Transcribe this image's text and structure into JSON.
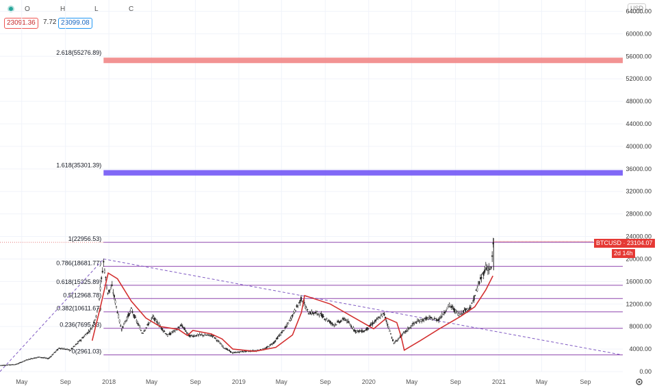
{
  "legend": {
    "o_label": "O",
    "h_label": "H",
    "l_label": "L",
    "c_label": "C",
    "price_a": "23091.36",
    "change": "7.72",
    "price_b": "23099.08"
  },
  "currency": "USD",
  "price_badge": {
    "text": "BTCUSD · 23104.07",
    "sub": "2d 14h",
    "color": "#e53935"
  },
  "chart_data": {
    "type": "candlestick",
    "ylim": [
      0,
      66000
    ],
    "yticks": [
      0,
      4000,
      8000,
      12000,
      16000,
      20000,
      24000,
      28000,
      32000,
      36000,
      40000,
      44000,
      48000,
      52000,
      56000,
      60000,
      64000
    ],
    "ytick_labels": [
      "0.00",
      "4000.00",
      "8000.00",
      "12000.00",
      "16000.00",
      "20000.00",
      "24000.00",
      "28000.00",
      "32000.00",
      "36000.00",
      "40000.00",
      "44000.00",
      "48000.00",
      "52000.00",
      "56000.00",
      "60000.00",
      "64000.00"
    ],
    "xlim": [
      "2017-03-01",
      "2021-12-15"
    ],
    "xticks": [
      {
        "date": "2017-05-01",
        "label": "May"
      },
      {
        "date": "2017-09-01",
        "label": "Sep"
      },
      {
        "date": "2018-01-01",
        "label": "2018"
      },
      {
        "date": "2018-05-01",
        "label": "May"
      },
      {
        "date": "2018-09-01",
        "label": "Sep"
      },
      {
        "date": "2019-01-01",
        "label": "2019"
      },
      {
        "date": "2019-05-01",
        "label": "May"
      },
      {
        "date": "2019-09-01",
        "label": "Sep"
      },
      {
        "date": "2020-01-01",
        "label": "2020"
      },
      {
        "date": "2020-05-01",
        "label": "May"
      },
      {
        "date": "2020-09-01",
        "label": "Sep"
      },
      {
        "date": "2021-01-01",
        "label": "2021"
      },
      {
        "date": "2021-05-01",
        "label": "May"
      },
      {
        "date": "2021-09-01",
        "label": "Sep"
      }
    ],
    "fib_levels": [
      {
        "ratio": "0",
        "value": 2961.03,
        "label": "0(2961.03)"
      },
      {
        "ratio": "0.236",
        "value": 7695.33,
        "label": "0.236(7695.33)"
      },
      {
        "ratio": "0.382",
        "value": 10611.67,
        "label": "0.382(10611.67)"
      },
      {
        "ratio": "0.5",
        "value": 12968.78,
        "label": "0.5(12968.78)"
      },
      {
        "ratio": "0.618",
        "value": 15325.89,
        "label": "0.618(15325.89)"
      },
      {
        "ratio": "0.786",
        "value": 18681.77,
        "label": "0.786(18681.77)"
      },
      {
        "ratio": "1",
        "value": 22956.53,
        "label": "1(22956.53)"
      }
    ],
    "extension_bands": [
      {
        "label": "1.618(35301.39)",
        "value": 35301.39,
        "color": "#6a4df5"
      },
      {
        "label": "2.618(55276.89)",
        "value": 55276.89,
        "color": "#f08080"
      }
    ],
    "fib_line_color": "#8e44ad",
    "ma_color": "#d32f2f",
    "trendline": {
      "from": [
        "2017-03-01",
        0
      ],
      "to": [
        "2017-12-17",
        20000
      ]
    },
    "trendline2": {
      "from": [
        "2017-12-17",
        20000
      ],
      "to": [
        "2021-12-10",
        3000
      ]
    },
    "price_path": [
      [
        "2017-03-01",
        1100
      ],
      [
        "2017-04-15",
        1300
      ],
      [
        "2017-05-20",
        2200
      ],
      [
        "2017-06-20",
        2600
      ],
      [
        "2017-07-15",
        2300
      ],
      [
        "2017-08-15",
        4200
      ],
      [
        "2017-09-15",
        3800
      ],
      [
        "2017-10-15",
        5700
      ],
      [
        "2017-11-15",
        7800
      ],
      [
        "2017-12-01",
        11000
      ],
      [
        "2017-12-17",
        19500
      ],
      [
        "2017-12-28",
        14000
      ],
      [
        "2018-01-10",
        15000
      ],
      [
        "2018-02-05",
        7500
      ],
      [
        "2018-03-05",
        11000
      ],
      [
        "2018-04-05",
        6800
      ],
      [
        "2018-05-05",
        9700
      ],
      [
        "2018-06-15",
        6400
      ],
      [
        "2018-07-25",
        8200
      ],
      [
        "2018-08-15",
        6300
      ],
      [
        "2018-09-15",
        6500
      ],
      [
        "2018-10-20",
        6400
      ],
      [
        "2018-11-20",
        4300
      ],
      [
        "2018-12-15",
        3300
      ],
      [
        "2019-01-15",
        3600
      ],
      [
        "2019-02-15",
        3700
      ],
      [
        "2019-03-15",
        4000
      ],
      [
        "2019-04-10",
        5200
      ],
      [
        "2019-05-15",
        8000
      ],
      [
        "2019-06-26",
        13000
      ],
      [
        "2019-07-15",
        10500
      ],
      [
        "2019-08-15",
        10300
      ],
      [
        "2019-09-25",
        8300
      ],
      [
        "2019-10-26",
        9400
      ],
      [
        "2019-11-25",
        7200
      ],
      [
        "2019-12-20",
        7200
      ],
      [
        "2020-01-15",
        8700
      ],
      [
        "2020-02-13",
        10300
      ],
      [
        "2020-03-12",
        5000
      ],
      [
        "2020-04-10",
        6900
      ],
      [
        "2020-05-10",
        8700
      ],
      [
        "2020-06-15",
        9500
      ],
      [
        "2020-07-15",
        9200
      ],
      [
        "2020-08-15",
        11800
      ],
      [
        "2020-09-10",
        10200
      ],
      [
        "2020-10-15",
        11500
      ],
      [
        "2020-11-05",
        15500
      ],
      [
        "2020-11-25",
        18500
      ],
      [
        "2020-12-10",
        18300
      ],
      [
        "2020-12-17",
        23100
      ]
    ],
    "ma_path": [
      [
        "2017-11-15",
        5500
      ],
      [
        "2017-12-10",
        12000
      ],
      [
        "2017-12-30",
        17500
      ],
      [
        "2018-01-25",
        16500
      ],
      [
        "2018-03-05",
        12500
      ],
      [
        "2018-04-15",
        9500
      ],
      [
        "2018-05-25",
        8000
      ],
      [
        "2018-07-15",
        7500
      ],
      [
        "2018-08-10",
        6400
      ],
      [
        "2018-08-25",
        7300
      ],
      [
        "2018-10-15",
        6700
      ],
      [
        "2018-11-15",
        5800
      ],
      [
        "2018-12-15",
        4000
      ],
      [
        "2019-02-15",
        3600
      ],
      [
        "2019-04-15",
        4300
      ],
      [
        "2019-06-01",
        6500
      ],
      [
        "2019-06-26",
        10500
      ],
      [
        "2019-07-05",
        13500
      ],
      [
        "2019-09-15",
        12000
      ],
      [
        "2019-11-15",
        9800
      ],
      [
        "2020-01-15",
        7600
      ],
      [
        "2020-02-20",
        9500
      ],
      [
        "2020-03-20",
        8700
      ],
      [
        "2020-04-01",
        6300
      ],
      [
        "2020-04-10",
        3800
      ],
      [
        "2020-05-25",
        5500
      ],
      [
        "2020-07-15",
        7500
      ],
      [
        "2020-09-15",
        9800
      ],
      [
        "2020-10-25",
        11500
      ],
      [
        "2020-11-25",
        14500
      ],
      [
        "2020-12-15",
        17000
      ]
    ]
  }
}
